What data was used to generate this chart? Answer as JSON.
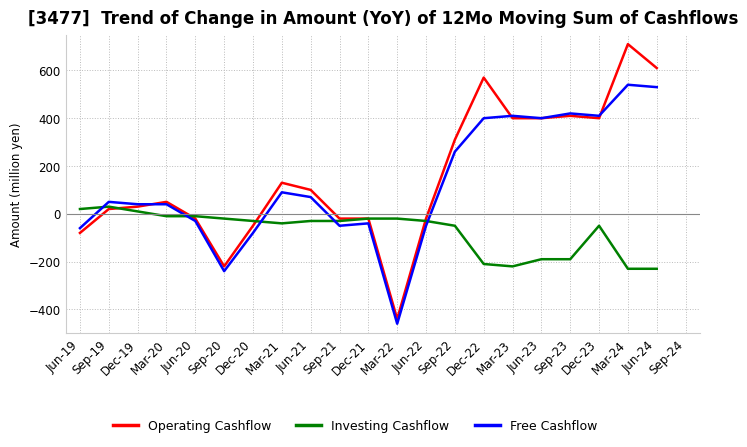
{
  "title": "[3477]  Trend of Change in Amount (YoY) of 12Mo Moving Sum of Cashflows",
  "ylabel": "Amount (million yen)",
  "x_labels": [
    "Jun-19",
    "Sep-19",
    "Dec-19",
    "Mar-20",
    "Jun-20",
    "Sep-20",
    "Dec-20",
    "Mar-21",
    "Jun-21",
    "Sep-21",
    "Dec-21",
    "Mar-22",
    "Jun-22",
    "Sep-22",
    "Dec-22",
    "Mar-23",
    "Jun-23",
    "Sep-23",
    "Dec-23",
    "Mar-24",
    "Jun-24",
    "Sep-24"
  ],
  "operating_cashflow": [
    -80,
    20,
    30,
    50,
    -20,
    -220,
    -50,
    130,
    100,
    -20,
    -20,
    -440,
    -20,
    310,
    570,
    400,
    400,
    410,
    400,
    710,
    610,
    null
  ],
  "investing_cashflow": [
    20,
    30,
    10,
    -10,
    -10,
    -20,
    -30,
    -40,
    -30,
    -30,
    -20,
    -20,
    -30,
    -50,
    -210,
    -220,
    -190,
    -190,
    -50,
    -230,
    -230,
    null
  ],
  "free_cashflow": [
    -60,
    50,
    40,
    40,
    -30,
    -240,
    -80,
    90,
    70,
    -50,
    -40,
    -460,
    -50,
    260,
    400,
    410,
    400,
    420,
    410,
    540,
    530,
    null
  ],
  "ylim": [
    -500,
    750
  ],
  "yticks": [
    -400,
    -200,
    0,
    200,
    400,
    600
  ],
  "operating_color": "#ff0000",
  "investing_color": "#008000",
  "free_color": "#0000ff",
  "background_color": "#ffffff",
  "grid_color": "#bbbbbb",
  "title_fontsize": 12,
  "legend_fontsize": 9,
  "axis_fontsize": 8.5
}
